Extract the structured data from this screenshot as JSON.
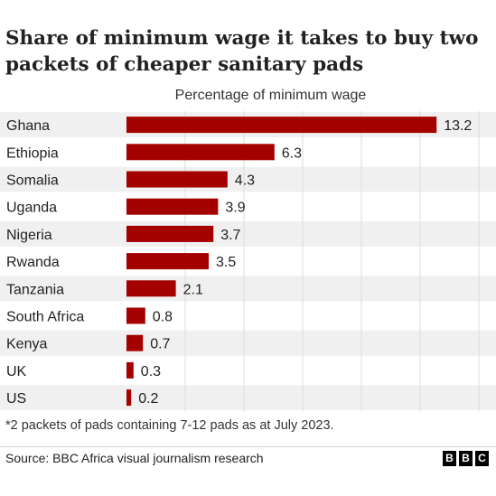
{
  "chart_data": {
    "type": "bar",
    "orientation": "horizontal",
    "title": "Share of minimum wage it takes to buy two packets of cheaper sanitary pads",
    "xlabel": "Percentage of minimum wage",
    "ylabel": "",
    "categories": [
      "Ghana",
      "Ethiopia",
      "Somalia",
      "Uganda",
      "Nigeria",
      "Rwanda",
      "Tanzania",
      "South Africa",
      "Kenya",
      "UK",
      "US"
    ],
    "values": [
      13.2,
      6.3,
      4.3,
      3.9,
      3.7,
      3.5,
      2.1,
      0.8,
      0.7,
      0.3,
      0.2
    ],
    "value_labels": [
      "13.2",
      "6.3",
      "4.3",
      "3.9",
      "3.7",
      "3.5",
      "2.1",
      "0.8",
      "0.7",
      "0.3",
      "0.2"
    ],
    "xlim": [
      0,
      15
    ],
    "grid": true,
    "bar_color": "#a50000",
    "band_color": "#f0f0f0",
    "footnote": "*2 packets of pads containing 7-12 pads as at July 2023.",
    "source": "Source: BBC Africa visual journalism research"
  },
  "logo": [
    "B",
    "B",
    "C"
  ]
}
